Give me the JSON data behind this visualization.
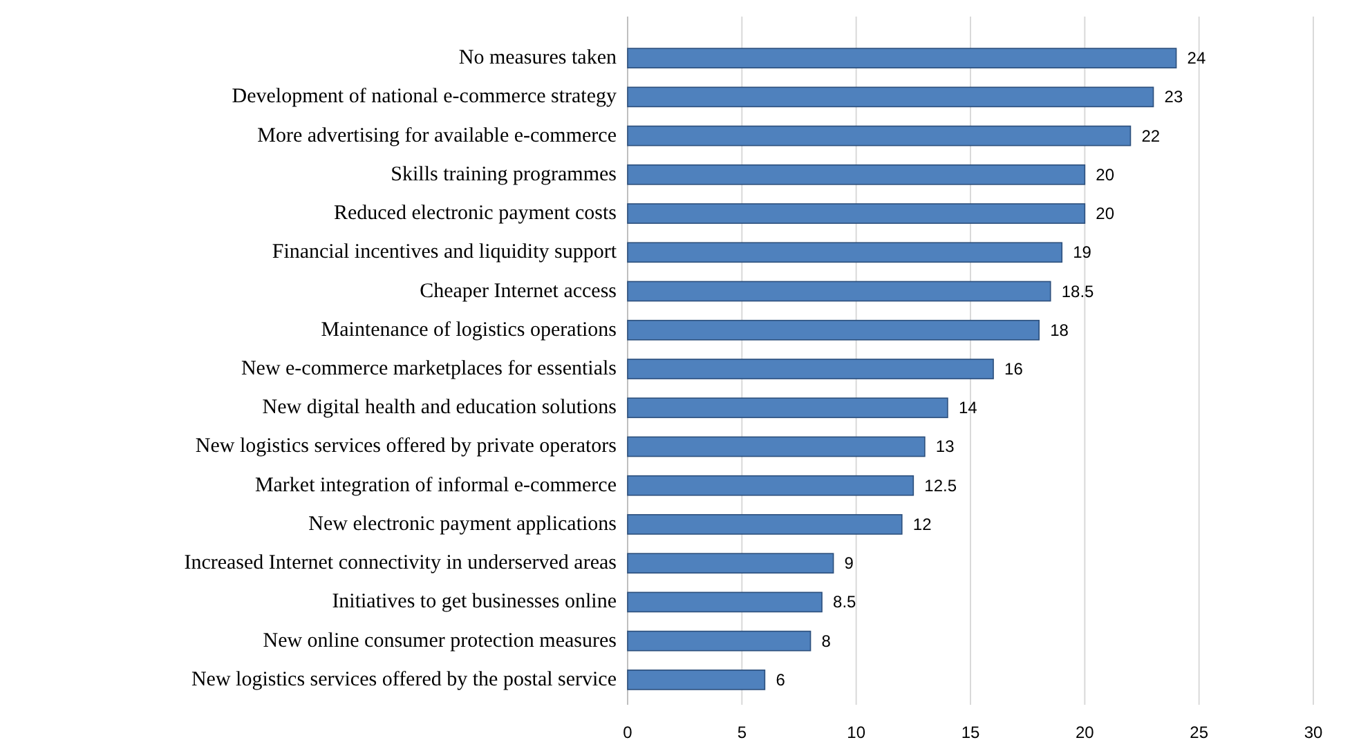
{
  "chart_data": {
    "type": "bar",
    "orientation": "horizontal",
    "categories": [
      "No measures taken",
      "Development of national e-commerce strategy",
      "More advertising for available e-commerce",
      "Skills training programmes",
      "Reduced electronic payment costs",
      "Financial incentives and liquidity support",
      "Cheaper Internet access",
      "Maintenance of logistics operations",
      "New e-commerce marketplaces for essentials",
      "New digital health and education solutions",
      "New logistics services offered by private operators",
      "Market integration of informal e-commerce",
      "New electronic payment applications",
      "Increased Internet connectivity in underserved areas",
      "Initiatives to get businesses online",
      "New online consumer protection measures",
      "New logistics services offered by the postal service"
    ],
    "values": [
      24,
      23,
      22,
      20,
      20,
      19,
      18.5,
      18,
      16,
      14,
      13,
      12.5,
      12,
      9,
      8.5,
      8,
      6
    ],
    "color": "#4f81bd",
    "xlim": [
      0,
      30
    ],
    "xticks": [
      0,
      5,
      10,
      15,
      20,
      25,
      30
    ],
    "grid": "x",
    "data_labels": true
  }
}
